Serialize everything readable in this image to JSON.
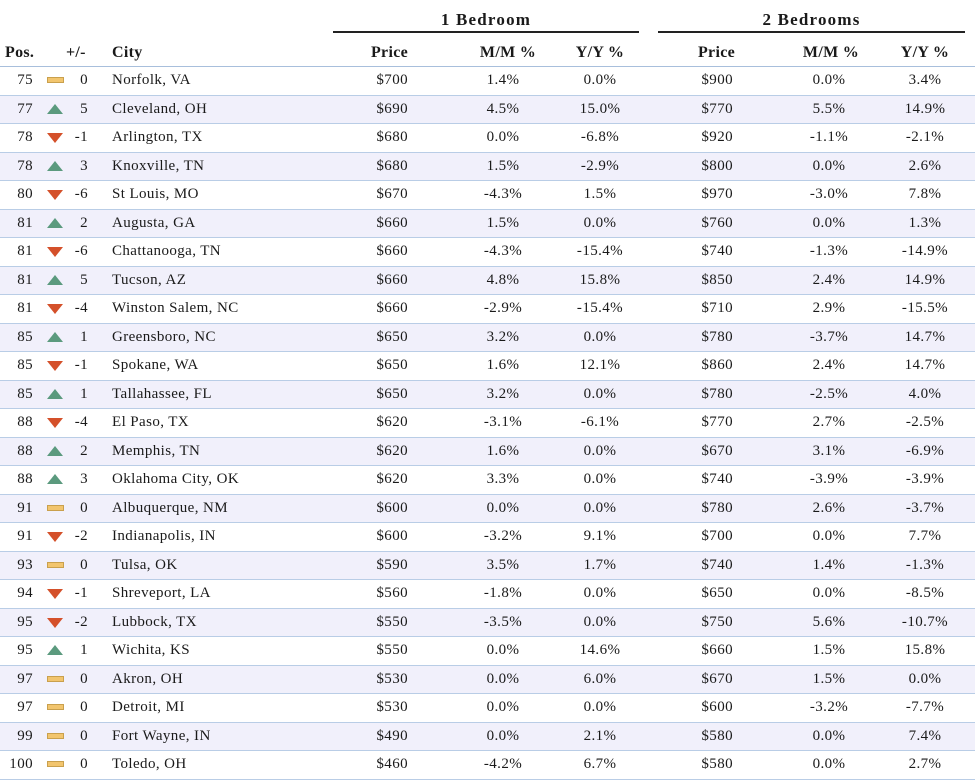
{
  "groups": {
    "one_bedroom": "1 Bedroom",
    "two_bedrooms": "2 Bedrooms"
  },
  "headers": {
    "pos": "Pos.",
    "change": "+/-",
    "city": "City",
    "price1": "Price",
    "mm1": "M/M %",
    "yy1": "Y/Y %",
    "price2": "Price",
    "mm2": "M/M %",
    "yy2": "Y/Y %"
  },
  "indicator_colors": {
    "up": "#5b9a7e",
    "down": "#d4502a",
    "same": "#f2c56e"
  },
  "rows": [
    {
      "pos": "75",
      "trend": "same",
      "change": "0",
      "city": "Norfolk, VA",
      "price1": "$700",
      "mm1": "1.4%",
      "yy1": "0.0%",
      "price2": "$900",
      "mm2": "0.0%",
      "yy2": "3.4%"
    },
    {
      "pos": "77",
      "trend": "up",
      "change": "5",
      "city": "Cleveland, OH",
      "price1": "$690",
      "mm1": "4.5%",
      "yy1": "15.0%",
      "price2": "$770",
      "mm2": "5.5%",
      "yy2": "14.9%"
    },
    {
      "pos": "78",
      "trend": "down",
      "change": "-1",
      "city": "Arlington, TX",
      "price1": "$680",
      "mm1": "0.0%",
      "yy1": "-6.8%",
      "price2": "$920",
      "mm2": "-1.1%",
      "yy2": "-2.1%"
    },
    {
      "pos": "78",
      "trend": "up",
      "change": "3",
      "city": "Knoxville, TN",
      "price1": "$680",
      "mm1": "1.5%",
      "yy1": "-2.9%",
      "price2": "$800",
      "mm2": "0.0%",
      "yy2": "2.6%"
    },
    {
      "pos": "80",
      "trend": "down",
      "change": "-6",
      "city": "St Louis, MO",
      "price1": "$670",
      "mm1": "-4.3%",
      "yy1": "1.5%",
      "price2": "$970",
      "mm2": "-3.0%",
      "yy2": "7.8%"
    },
    {
      "pos": "81",
      "trend": "up",
      "change": "2",
      "city": "Augusta, GA",
      "price1": "$660",
      "mm1": "1.5%",
      "yy1": "0.0%",
      "price2": "$760",
      "mm2": "0.0%",
      "yy2": "1.3%"
    },
    {
      "pos": "81",
      "trend": "down",
      "change": "-6",
      "city": "Chattanooga, TN",
      "price1": "$660",
      "mm1": "-4.3%",
      "yy1": "-15.4%",
      "price2": "$740",
      "mm2": "-1.3%",
      "yy2": "-14.9%"
    },
    {
      "pos": "81",
      "trend": "up",
      "change": "5",
      "city": "Tucson, AZ",
      "price1": "$660",
      "mm1": "4.8%",
      "yy1": "15.8%",
      "price2": "$850",
      "mm2": "2.4%",
      "yy2": "14.9%"
    },
    {
      "pos": "81",
      "trend": "down",
      "change": "-4",
      "city": "Winston Salem, NC",
      "price1": "$660",
      "mm1": "-2.9%",
      "yy1": "-15.4%",
      "price2": "$710",
      "mm2": "2.9%",
      "yy2": "-15.5%"
    },
    {
      "pos": "85",
      "trend": "up",
      "change": "1",
      "city": "Greensboro, NC",
      "price1": "$650",
      "mm1": "3.2%",
      "yy1": "0.0%",
      "price2": "$780",
      "mm2": "-3.7%",
      "yy2": "14.7%"
    },
    {
      "pos": "85",
      "trend": "down",
      "change": "-1",
      "city": "Spokane, WA",
      "price1": "$650",
      "mm1": "1.6%",
      "yy1": "12.1%",
      "price2": "$860",
      "mm2": "2.4%",
      "yy2": "14.7%"
    },
    {
      "pos": "85",
      "trend": "up",
      "change": "1",
      "city": "Tallahassee, FL",
      "price1": "$650",
      "mm1": "3.2%",
      "yy1": "0.0%",
      "price2": "$780",
      "mm2": "-2.5%",
      "yy2": "4.0%"
    },
    {
      "pos": "88",
      "trend": "down",
      "change": "-4",
      "city": "El Paso, TX",
      "price1": "$620",
      "mm1": "-3.1%",
      "yy1": "-6.1%",
      "price2": "$770",
      "mm2": "2.7%",
      "yy2": "-2.5%"
    },
    {
      "pos": "88",
      "trend": "up",
      "change": "2",
      "city": "Memphis, TN",
      "price1": "$620",
      "mm1": "1.6%",
      "yy1": "0.0%",
      "price2": "$670",
      "mm2": "3.1%",
      "yy2": "-6.9%"
    },
    {
      "pos": "88",
      "trend": "up",
      "change": "3",
      "city": "Oklahoma City, OK",
      "price1": "$620",
      "mm1": "3.3%",
      "yy1": "0.0%",
      "price2": "$740",
      "mm2": "-3.9%",
      "yy2": "-3.9%"
    },
    {
      "pos": "91",
      "trend": "same",
      "change": "0",
      "city": "Albuquerque, NM",
      "price1": "$600",
      "mm1": "0.0%",
      "yy1": "0.0%",
      "price2": "$780",
      "mm2": "2.6%",
      "yy2": "-3.7%"
    },
    {
      "pos": "91",
      "trend": "down",
      "change": "-2",
      "city": "Indianapolis, IN",
      "price1": "$600",
      "mm1": "-3.2%",
      "yy1": "9.1%",
      "price2": "$700",
      "mm2": "0.0%",
      "yy2": "7.7%"
    },
    {
      "pos": "93",
      "trend": "same",
      "change": "0",
      "city": "Tulsa, OK",
      "price1": "$590",
      "mm1": "3.5%",
      "yy1": "1.7%",
      "price2": "$740",
      "mm2": "1.4%",
      "yy2": "-1.3%"
    },
    {
      "pos": "94",
      "trend": "down",
      "change": "-1",
      "city": "Shreveport, LA",
      "price1": "$560",
      "mm1": "-1.8%",
      "yy1": "0.0%",
      "price2": "$650",
      "mm2": "0.0%",
      "yy2": "-8.5%"
    },
    {
      "pos": "95",
      "trend": "down",
      "change": "-2",
      "city": "Lubbock, TX",
      "price1": "$550",
      "mm1": "-3.5%",
      "yy1": "0.0%",
      "price2": "$750",
      "mm2": "5.6%",
      "yy2": "-10.7%"
    },
    {
      "pos": "95",
      "trend": "up",
      "change": "1",
      "city": "Wichita, KS",
      "price1": "$550",
      "mm1": "0.0%",
      "yy1": "14.6%",
      "price2": "$660",
      "mm2": "1.5%",
      "yy2": "15.8%"
    },
    {
      "pos": "97",
      "trend": "same",
      "change": "0",
      "city": "Akron, OH",
      "price1": "$530",
      "mm1": "0.0%",
      "yy1": "6.0%",
      "price2": "$670",
      "mm2": "1.5%",
      "yy2": "0.0%"
    },
    {
      "pos": "97",
      "trend": "same",
      "change": "0",
      "city": "Detroit, MI",
      "price1": "$530",
      "mm1": "0.0%",
      "yy1": "0.0%",
      "price2": "$600",
      "mm2": "-3.2%",
      "yy2": "-7.7%"
    },
    {
      "pos": "99",
      "trend": "same",
      "change": "0",
      "city": "Fort Wayne, IN",
      "price1": "$490",
      "mm1": "0.0%",
      "yy1": "2.1%",
      "price2": "$580",
      "mm2": "0.0%",
      "yy2": "7.4%"
    },
    {
      "pos": "100",
      "trend": "same",
      "change": "0",
      "city": "Toledo, OH",
      "price1": "$460",
      "mm1": "-4.2%",
      "yy1": "6.7%",
      "price2": "$580",
      "mm2": "0.0%",
      "yy2": "2.7%"
    }
  ]
}
